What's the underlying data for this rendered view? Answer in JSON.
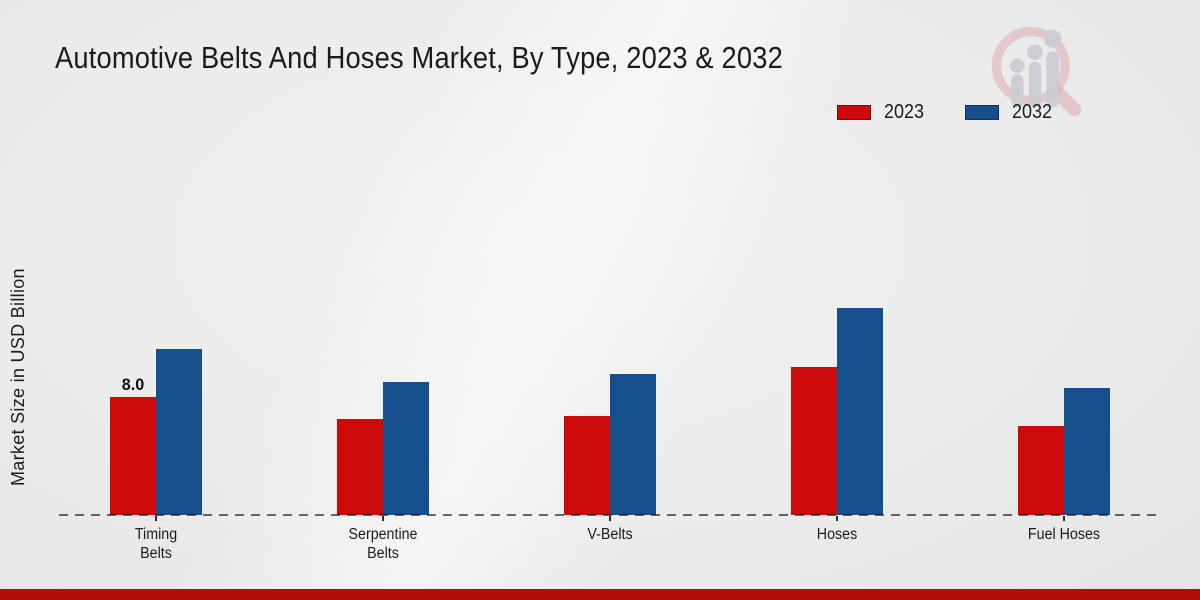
{
  "header": {
    "title": "Automotive Belts And Hoses Market, By Type, 2023 & 2032"
  },
  "legend": {
    "items": [
      {
        "label": "2023",
        "color": "#cc0a0a"
      },
      {
        "label": "2032",
        "color": "#15508c"
      }
    ]
  },
  "icons": {
    "watermark": "magnifier-bar-chart-logo"
  },
  "colors": {
    "series_2023": "#cc0a0a",
    "series_2032": "#15508c",
    "footer_strip": "#b40d0d",
    "axis_line": "rgba(10,10,10,0.6)",
    "text": "#1b1b1b"
  },
  "footer": {
    "strip": true
  },
  "chart_data": {
    "type": "bar",
    "title": "Automotive Belts And Hoses Market, By Type, 2023 & 2032",
    "xlabel": "",
    "ylabel": "Market Size in USD Billion",
    "categories": [
      "Timing Belts",
      "Serpentine Belts",
      "V-Belts",
      "Hoses",
      "Fuel Hoses"
    ],
    "category_lines": [
      [
        "Timing",
        "Belts"
      ],
      [
        "Serpentine",
        "Belts"
      ],
      [
        "V-Belts"
      ],
      [
        "Hoses"
      ],
      [
        "Fuel Hoses"
      ]
    ],
    "series": [
      {
        "name": "2023",
        "color": "#cc0a0a",
        "values": [
          8.0,
          6.5,
          6.7,
          10.0,
          6.0
        ]
      },
      {
        "name": "2032",
        "color": "#15508c",
        "values": [
          11.2,
          9.0,
          9.5,
          14.0,
          8.6
        ]
      }
    ],
    "value_labels": [
      {
        "series_index": 0,
        "category_index": 0,
        "text": "8.0"
      }
    ],
    "ylim": [
      0,
      15
    ],
    "grid": false,
    "y_ticks_visible": false,
    "legend_position": "top-right",
    "baseline_style": "dashed"
  }
}
